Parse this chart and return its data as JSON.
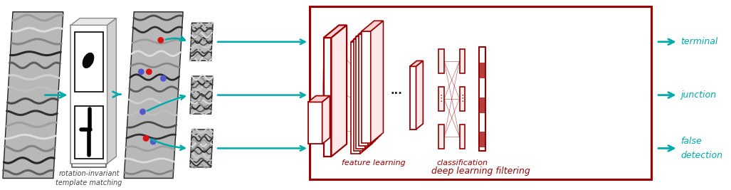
{
  "fig_width": 10.27,
  "fig_height": 2.67,
  "dpi": 100,
  "bg_color": "#ffffff",
  "teal": "#00AAAA",
  "dark_red": "#990000",
  "gray_edge": "#444444",
  "text_ri": "rotation-invariant\ntemplate matching",
  "text_fl": "feature learning",
  "text_cl": "classification",
  "text_dl": "deep learning filtering",
  "text_terminal": "terminal",
  "text_junction": "junction",
  "text_false1": "false",
  "text_false2": "detection"
}
